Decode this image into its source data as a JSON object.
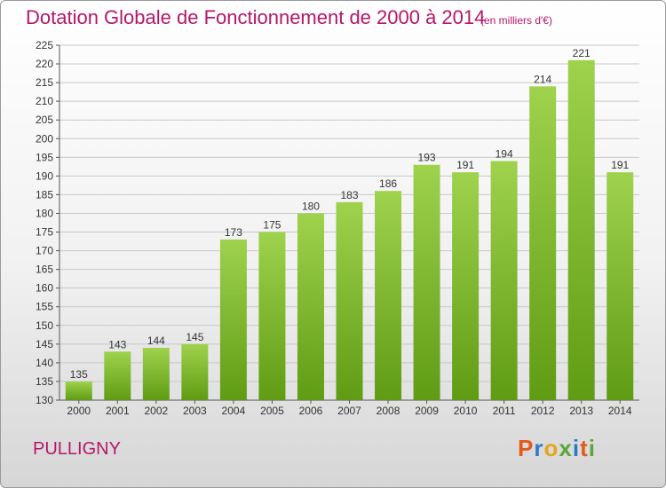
{
  "title": "Dotation Globale de Fonctionnement de 2000 à 2014",
  "subtitle": "(en milliers d'€)",
  "commune": "PULLIGNY",
  "logo": {
    "text": "Proxiti",
    "letters": [
      {
        "ch": "P",
        "color": "#e35a1a"
      },
      {
        "ch": "r",
        "color": "#2e79c7"
      },
      {
        "ch": "o",
        "color": "#e8a51d"
      },
      {
        "ch": "x",
        "color": "#5aa63a"
      },
      {
        "ch": "i",
        "color": "#2e79c7"
      },
      {
        "ch": "t",
        "color": "#e35a1a"
      },
      {
        "ch": "i",
        "color": "#5aa63a"
      }
    ]
  },
  "chart_data": {
    "type": "bar",
    "categories": [
      "2000",
      "2001",
      "2002",
      "2003",
      "2004",
      "2005",
      "2006",
      "2007",
      "2008",
      "2009",
      "2010",
      "2011",
      "2012",
      "2013",
      "2014"
    ],
    "values": [
      135,
      143,
      144,
      145,
      173,
      175,
      180,
      183,
      186,
      193,
      191,
      194,
      214,
      221,
      191
    ],
    "ylim": [
      130,
      225
    ],
    "yticks": [
      130,
      135,
      140,
      145,
      150,
      155,
      160,
      165,
      170,
      175,
      180,
      185,
      190,
      195,
      200,
      205,
      210,
      215,
      220,
      225
    ],
    "grid": true,
    "colors": {
      "bar_top": "#9fd24d",
      "bar_bottom": "#5f9c13",
      "grid": "#c8c8c8"
    }
  }
}
